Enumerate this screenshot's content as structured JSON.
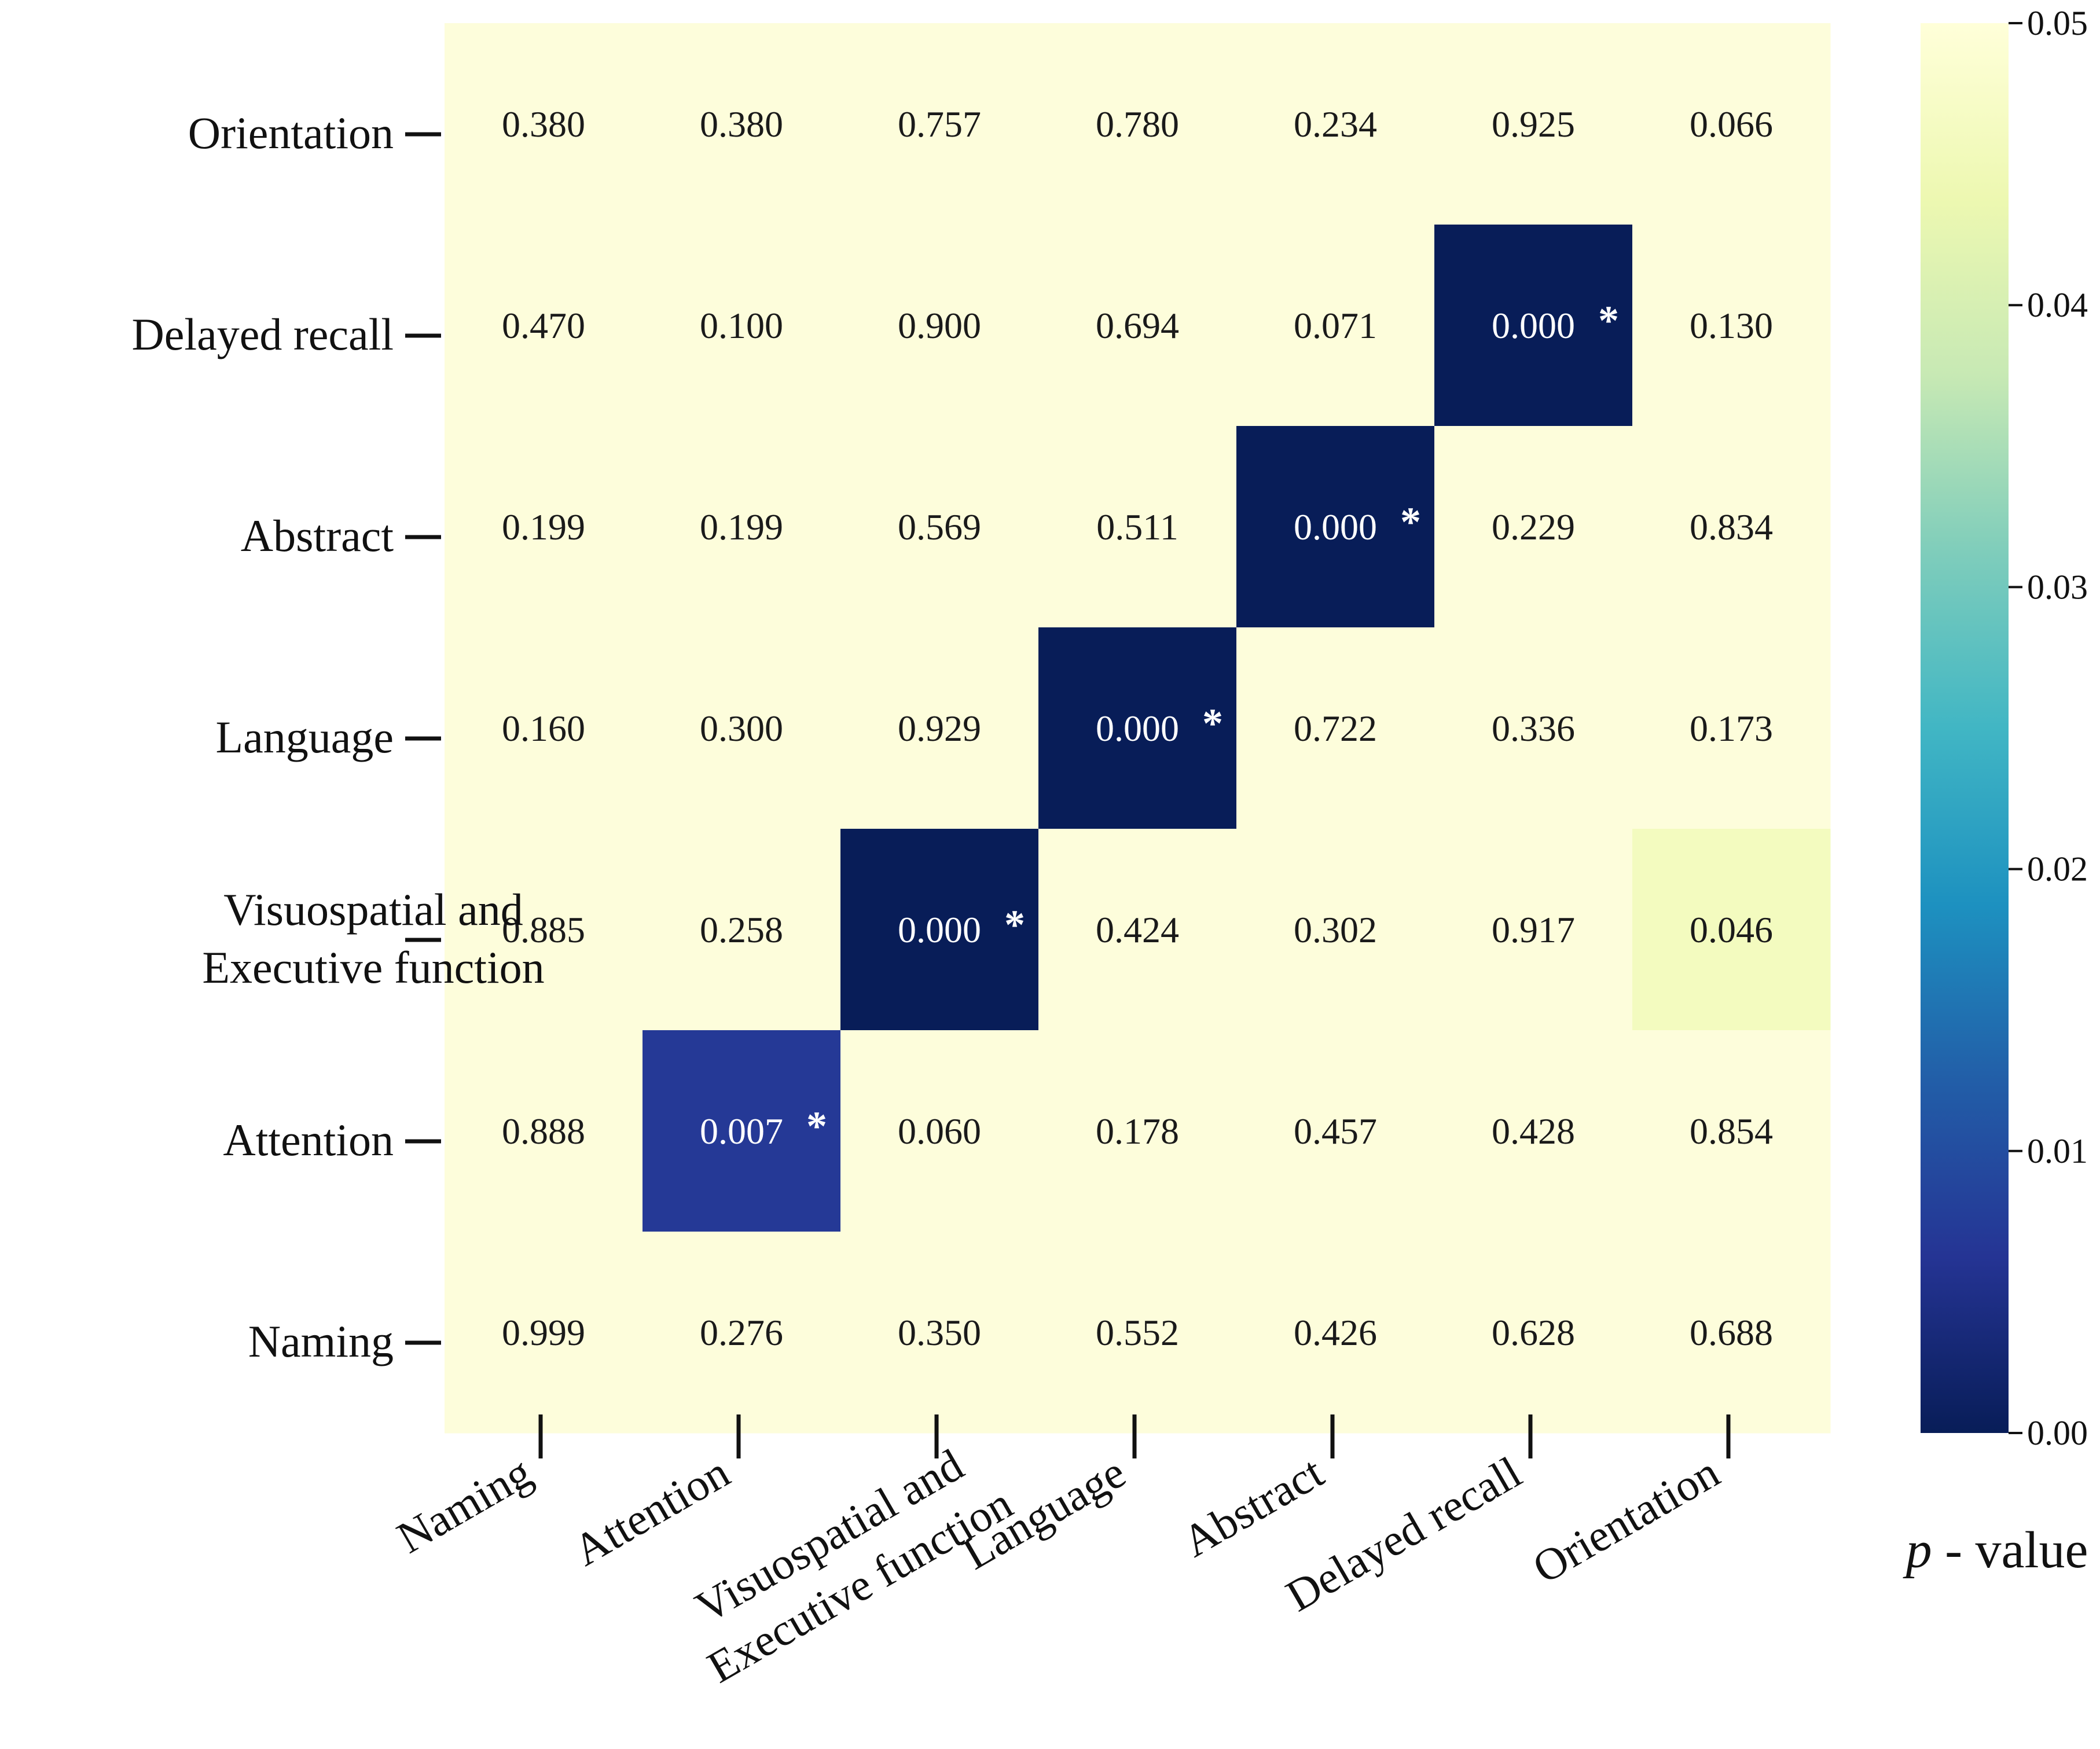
{
  "chart_data": {
    "type": "heatmap",
    "title": "",
    "x_categories": [
      "Naming",
      "Attention",
      "Visuospatial and Executive function",
      "Language",
      "Abstract",
      "Delayed recall",
      "Orientation"
    ],
    "y_categories_top_to_bottom": [
      "Orientation",
      "Delayed recall",
      "Abstract",
      "Language",
      "Visuospatial and Executive function",
      "Attention",
      "Naming"
    ],
    "cells": [
      {
        "row": "Orientation",
        "col": "Naming",
        "value": 0.38,
        "label": "0.380",
        "star": false
      },
      {
        "row": "Orientation",
        "col": "Attention",
        "value": 0.38,
        "label": "0.380",
        "star": false
      },
      {
        "row": "Orientation",
        "col": "Visuospatial and Executive function",
        "value": 0.757,
        "label": "0.757",
        "star": false
      },
      {
        "row": "Orientation",
        "col": "Language",
        "value": 0.78,
        "label": "0.780",
        "star": false
      },
      {
        "row": "Orientation",
        "col": "Abstract",
        "value": 0.234,
        "label": "0.234",
        "star": false
      },
      {
        "row": "Orientation",
        "col": "Delayed recall",
        "value": 0.925,
        "label": "0.925",
        "star": false
      },
      {
        "row": "Orientation",
        "col": "Orientation",
        "value": 0.066,
        "label": "0.066",
        "star": false
      },
      {
        "row": "Delayed recall",
        "col": "Naming",
        "value": 0.47,
        "label": "0.470",
        "star": false
      },
      {
        "row": "Delayed recall",
        "col": "Attention",
        "value": 0.1,
        "label": "0.100",
        "star": false
      },
      {
        "row": "Delayed recall",
        "col": "Visuospatial and Executive function",
        "value": 0.9,
        "label": "0.900",
        "star": false
      },
      {
        "row": "Delayed recall",
        "col": "Language",
        "value": 0.694,
        "label": "0.694",
        "star": false
      },
      {
        "row": "Delayed recall",
        "col": "Abstract",
        "value": 0.071,
        "label": "0.071",
        "star": false
      },
      {
        "row": "Delayed recall",
        "col": "Delayed recall",
        "value": 0.0,
        "label": "0.000",
        "star": true
      },
      {
        "row": "Delayed recall",
        "col": "Orientation",
        "value": 0.13,
        "label": "0.130",
        "star": false
      },
      {
        "row": "Abstract",
        "col": "Naming",
        "value": 0.199,
        "label": "0.199",
        "star": false
      },
      {
        "row": "Abstract",
        "col": "Attention",
        "value": 0.199,
        "label": "0.199",
        "star": false
      },
      {
        "row": "Abstract",
        "col": "Visuospatial and Executive function",
        "value": 0.569,
        "label": "0.569",
        "star": false
      },
      {
        "row": "Abstract",
        "col": "Language",
        "value": 0.511,
        "label": "0.511",
        "star": false
      },
      {
        "row": "Abstract",
        "col": "Abstract",
        "value": 0.0,
        "label": "0.000",
        "star": true
      },
      {
        "row": "Abstract",
        "col": "Delayed recall",
        "value": 0.229,
        "label": "0.229",
        "star": false
      },
      {
        "row": "Abstract",
        "col": "Orientation",
        "value": 0.834,
        "label": "0.834",
        "star": false
      },
      {
        "row": "Language",
        "col": "Naming",
        "value": 0.16,
        "label": "0.160",
        "star": false
      },
      {
        "row": "Language",
        "col": "Attention",
        "value": 0.3,
        "label": "0.300",
        "star": false
      },
      {
        "row": "Language",
        "col": "Visuospatial and Executive function",
        "value": 0.929,
        "label": "0.929",
        "star": false
      },
      {
        "row": "Language",
        "col": "Language",
        "value": 0.0,
        "label": "0.000",
        "star": true
      },
      {
        "row": "Language",
        "col": "Abstract",
        "value": 0.722,
        "label": "0.722",
        "star": false
      },
      {
        "row": "Language",
        "col": "Delayed recall",
        "value": 0.336,
        "label": "0.336",
        "star": false
      },
      {
        "row": "Language",
        "col": "Orientation",
        "value": 0.173,
        "label": "0.173",
        "star": false
      },
      {
        "row": "Visuospatial and Executive function",
        "col": "Naming",
        "value": 0.885,
        "label": "0.885",
        "star": false
      },
      {
        "row": "Visuospatial and Executive function",
        "col": "Attention",
        "value": 0.258,
        "label": "0.258",
        "star": false
      },
      {
        "row": "Visuospatial and Executive function",
        "col": "Visuospatial and Executive function",
        "value": 0.0,
        "label": "0.000",
        "star": true
      },
      {
        "row": "Visuospatial and Executive function",
        "col": "Language",
        "value": 0.424,
        "label": "0.424",
        "star": false
      },
      {
        "row": "Visuospatial and Executive function",
        "col": "Abstract",
        "value": 0.302,
        "label": "0.302",
        "star": false
      },
      {
        "row": "Visuospatial and Executive function",
        "col": "Delayed recall",
        "value": 0.917,
        "label": "0.917",
        "star": false
      },
      {
        "row": "Visuospatial and Executive function",
        "col": "Orientation",
        "value": 0.046,
        "label": "0.046",
        "star": false
      },
      {
        "row": "Attention",
        "col": "Naming",
        "value": 0.888,
        "label": "0.888",
        "star": false
      },
      {
        "row": "Attention",
        "col": "Attention",
        "value": 0.007,
        "label": "0.007",
        "star": true
      },
      {
        "row": "Attention",
        "col": "Visuospatial and Executive function",
        "value": 0.06,
        "label": "0.060",
        "star": false
      },
      {
        "row": "Attention",
        "col": "Language",
        "value": 0.178,
        "label": "0.178",
        "star": false
      },
      {
        "row": "Attention",
        "col": "Abstract",
        "value": 0.457,
        "label": "0.457",
        "star": false
      },
      {
        "row": "Attention",
        "col": "Delayed recall",
        "value": 0.428,
        "label": "0.428",
        "star": false
      },
      {
        "row": "Attention",
        "col": "Orientation",
        "value": 0.854,
        "label": "0.854",
        "star": false
      },
      {
        "row": "Naming",
        "col": "Naming",
        "value": 0.999,
        "label": "0.999",
        "star": false
      },
      {
        "row": "Naming",
        "col": "Attention",
        "value": 0.276,
        "label": "0.276",
        "star": false
      },
      {
        "row": "Naming",
        "col": "Visuospatial and Executive function",
        "value": 0.35,
        "label": "0.350",
        "star": false
      },
      {
        "row": "Naming",
        "col": "Language",
        "value": 0.552,
        "label": "0.552",
        "star": false
      },
      {
        "row": "Naming",
        "col": "Abstract",
        "value": 0.426,
        "label": "0.426",
        "star": false
      },
      {
        "row": "Naming",
        "col": "Delayed recall",
        "value": 0.628,
        "label": "0.628",
        "star": false
      },
      {
        "row": "Naming",
        "col": "Orientation",
        "value": 0.688,
        "label": "0.688",
        "star": false
      }
    ],
    "colorbar": {
      "vmin": 0.0,
      "vmax": 0.05,
      "ticks": [
        "0.00",
        "0.01",
        "0.02",
        "0.03",
        "0.04",
        "0.05"
      ],
      "label_italic": "p",
      "label_rest": " - value",
      "colormap": "YlGnBu_r",
      "stops": [
        "#081d58",
        "#253494",
        "#225ea8",
        "#1d91c0",
        "#41b6c4",
        "#7fcdbb",
        "#c7e9b4",
        "#edf8b1",
        "#ffffd9"
      ]
    },
    "star_symbol": "*",
    "star_color": "#ffffff",
    "high_value_color": "#fdfddb"
  }
}
